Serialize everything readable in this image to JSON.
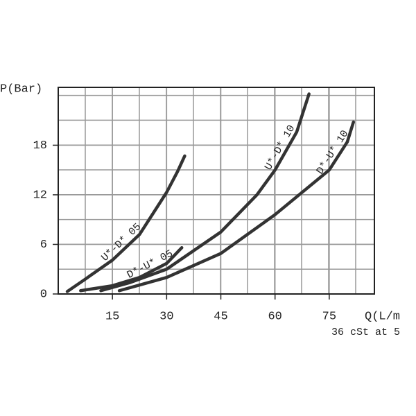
{
  "chart_data": {
    "type": "line",
    "y_label": "P(Bar)",
    "x_label": "Q(L/m",
    "note": "36 cSt at 5",
    "xlim": [
      0,
      87.5
    ],
    "xticks": [
      15,
      30,
      45,
      60,
      75
    ],
    "ylim": [
      0,
      25
    ],
    "yticks": [
      0,
      6,
      12,
      18
    ],
    "grid": true,
    "color": "#333333",
    "series": [
      {
        "name": "U*-D* 05",
        "x": [
          2.5,
          7.5,
          15,
          22.5,
          30,
          33,
          35
        ],
        "values": [
          0.3,
          1.8,
          4.1,
          7.2,
          12.3,
          14.8,
          16.7
        ]
      },
      {
        "name": "D*-U* 05",
        "x": [
          6.2,
          15,
          22.5,
          30,
          34.2
        ],
        "values": [
          0.4,
          1.0,
          2.0,
          3.7,
          5.6
        ]
      },
      {
        "name": "U*-D* 10",
        "x": [
          11.8,
          20,
          30,
          45,
          55,
          60,
          66,
          69.4
        ],
        "values": [
          0.4,
          1.4,
          3.0,
          7.5,
          12,
          15,
          19.6,
          24.2
        ]
      },
      {
        "name": "D*-U* 10",
        "x": [
          16.9,
          30,
          45,
          60,
          75,
          80,
          81.7
        ],
        "values": [
          0.4,
          2.0,
          4.9,
          9.6,
          15.0,
          18.4,
          20.8
        ]
      }
    ]
  }
}
